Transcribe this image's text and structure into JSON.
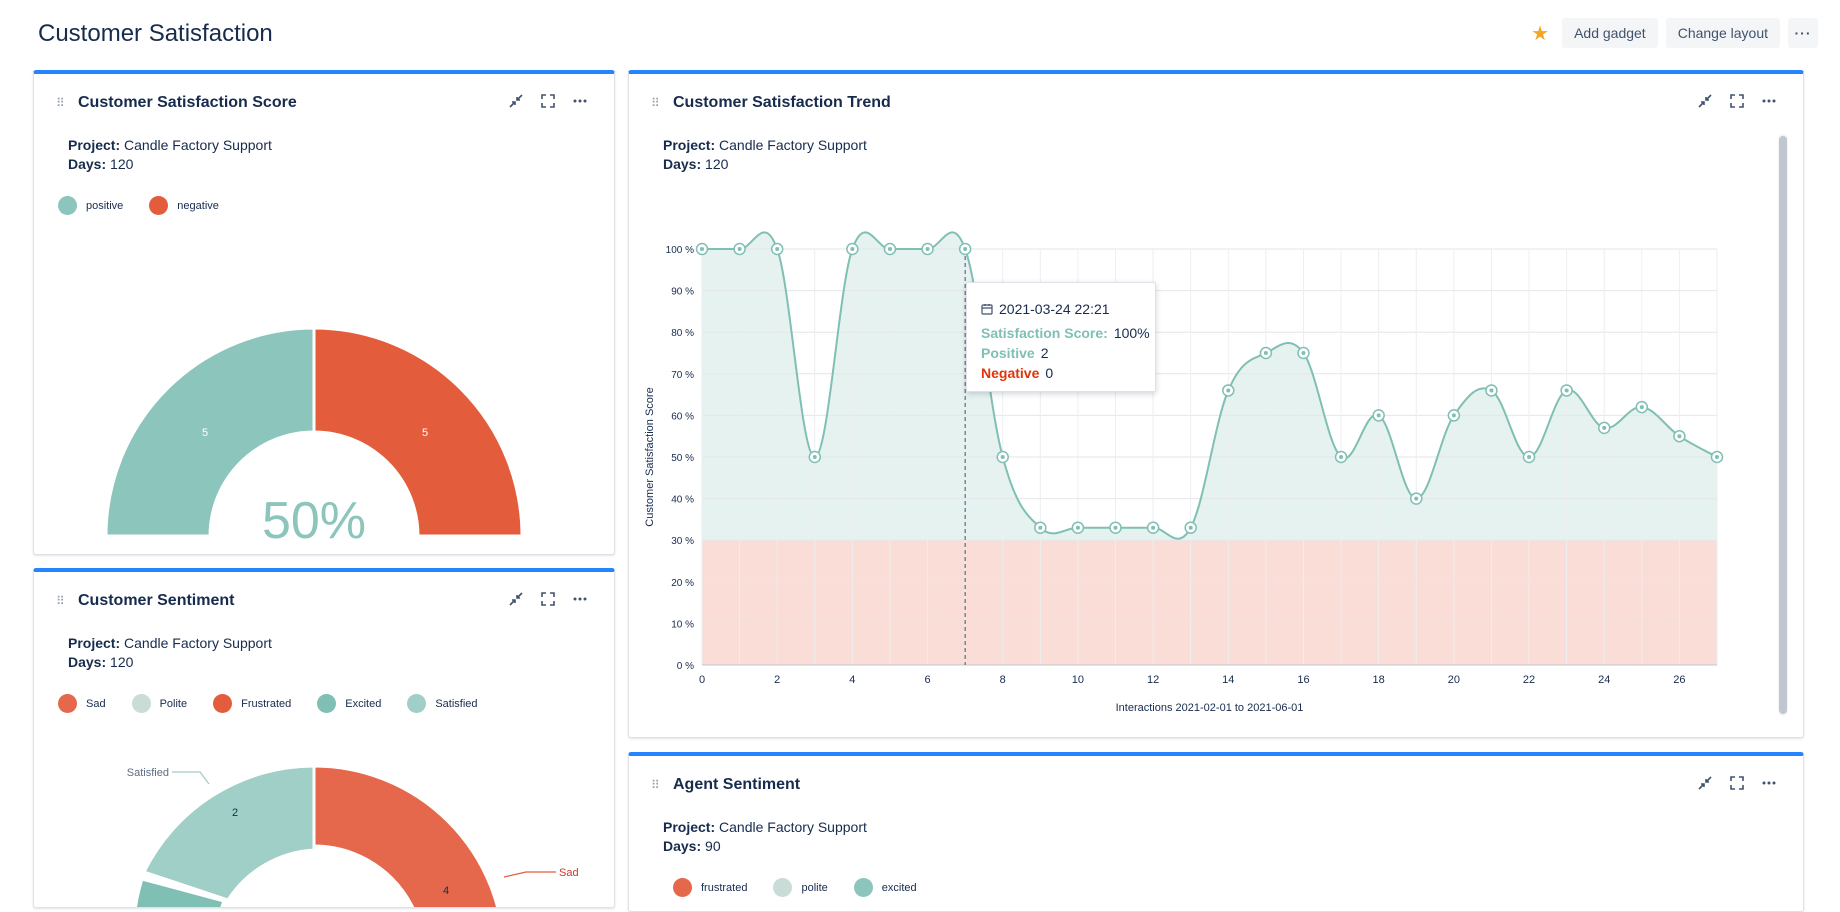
{
  "header": {
    "title": "Customer Satisfaction",
    "add_gadget": "Add gadget",
    "change_layout": "Change layout"
  },
  "gadgets": {
    "score": {
      "title": "Customer Satisfaction Score",
      "project_label": "Project:",
      "project": "Candle Factory Support",
      "days_label": "Days:",
      "days": "120",
      "legend": [
        {
          "label": "positive",
          "color": "#8cc5bc"
        },
        {
          "label": "negative",
          "color": "#e35d3c"
        }
      ]
    },
    "trend": {
      "title": "Customer Satisfaction Trend",
      "project_label": "Project:",
      "project": "Candle Factory Support",
      "days_label": "Days:",
      "days": "120"
    },
    "sentiment": {
      "title": "Customer Sentiment",
      "project_label": "Project:",
      "project": "Candle Factory Support",
      "days_label": "Days:",
      "days": "120",
      "legend": [
        {
          "label": "Sad",
          "color": "#e5684c"
        },
        {
          "label": "Polite",
          "color": "#c9dcd8"
        },
        {
          "label": "Frustrated",
          "color": "#e35d3c"
        },
        {
          "label": "Excited",
          "color": "#7fbfb4"
        },
        {
          "label": "Satisfied",
          "color": "#9fcfc7"
        }
      ]
    },
    "agent": {
      "title": "Agent Sentiment",
      "project_label": "Project:",
      "project": "Candle Factory Support",
      "days_label": "Days:",
      "days": "90",
      "legend": [
        {
          "label": "frustrated",
          "color": "#e5684c"
        },
        {
          "label": "polite",
          "color": "#c9dcd8"
        },
        {
          "label": "excited",
          "color": "#8cc5bc"
        }
      ]
    }
  },
  "tooltip": {
    "date": "2021-03-24 22:21",
    "score_label": "Satisfaction Score:",
    "score_value": "100%",
    "positive_label": "Positive",
    "positive_value": "2",
    "negative_label": "Negative",
    "negative_value": "0"
  },
  "chart_data": [
    {
      "type": "pie",
      "variant": "semi-donut",
      "labels": [
        "positive",
        "negative"
      ],
      "values": [
        5,
        5
      ],
      "center_label": "50%",
      "colors": [
        "#8cc5bc",
        "#e35d3c"
      ]
    },
    {
      "type": "area",
      "xlabel": "Interactions 2021-02-01 to 2021-06-01",
      "ylabel": "Customer Satisfaction Score",
      "xlim": [
        0,
        27
      ],
      "ylim": [
        0,
        100
      ],
      "x_ticks": [
        "0",
        "2",
        "4",
        "6",
        "8",
        "10",
        "12",
        "14",
        "16",
        "18",
        "20",
        "22",
        "24",
        "26"
      ],
      "y_ticks": [
        "0 %",
        "10 %",
        "20 %",
        "30 %",
        "40 %",
        "50 %",
        "60 %",
        "70 %",
        "80 %",
        "90 %",
        "100 %"
      ],
      "negative_threshold": 30,
      "grid": true,
      "highlight_x": 7,
      "x": [
        0,
        1,
        2,
        3,
        4,
        5,
        6,
        7,
        8,
        9,
        10,
        11,
        12,
        13,
        14,
        15,
        16,
        17,
        18,
        19,
        20,
        21,
        22,
        23,
        24,
        25,
        26,
        27
      ],
      "y": [
        100,
        100,
        100,
        50,
        100,
        100,
        100,
        100,
        50,
        33,
        33,
        33,
        33,
        33,
        66,
        75,
        75,
        50,
        60,
        40,
        60,
        66,
        50,
        66,
        57,
        62,
        55,
        50
      ],
      "colors": {
        "line": "#7fbfb4",
        "fill": "#e6f2ef",
        "negative_zone": "#f9ddd6"
      }
    },
    {
      "type": "pie",
      "variant": "semi-donut",
      "visible_slices": [
        {
          "label": "Satisfied",
          "value": 2,
          "color": "#9fcfc7"
        },
        {
          "label": "Sad",
          "value": 4,
          "color": "#e5684c"
        }
      ]
    }
  ]
}
